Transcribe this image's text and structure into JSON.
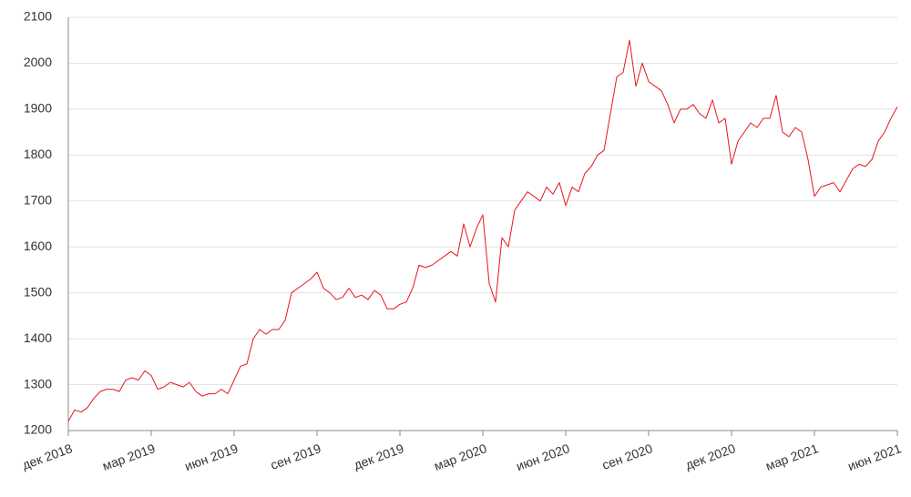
{
  "chart_data": {
    "type": "line",
    "categories": [
      "дек 2018",
      null,
      null,
      null,
      null,
      null,
      null,
      null,
      null,
      null,
      null,
      null,
      null,
      "мар 2019",
      null,
      null,
      null,
      null,
      null,
      null,
      null,
      null,
      null,
      null,
      null,
      null,
      "июн 2019",
      null,
      null,
      null,
      null,
      null,
      null,
      null,
      null,
      null,
      null,
      null,
      null,
      "сен 2019",
      null,
      null,
      null,
      null,
      null,
      null,
      null,
      null,
      null,
      null,
      null,
      null,
      "дек 2019",
      null,
      null,
      null,
      null,
      null,
      null,
      null,
      null,
      null,
      null,
      null,
      null,
      "мар 2020",
      null,
      null,
      null,
      null,
      null,
      null,
      null,
      null,
      null,
      null,
      null,
      null,
      "июн 2020",
      null,
      null,
      null,
      null,
      null,
      null,
      null,
      null,
      null,
      null,
      null,
      null,
      "сен 2020",
      null,
      null,
      null,
      null,
      null,
      null,
      null,
      null,
      null,
      null,
      null,
      null,
      "дек 2020",
      null,
      null,
      null,
      null,
      null,
      null,
      null,
      null,
      null,
      null,
      null,
      null,
      "мар 2021",
      null,
      null,
      null,
      null,
      null,
      null,
      null,
      null,
      null,
      null,
      null,
      null,
      "июн 2021"
    ],
    "values": [
      1220,
      1245,
      1240,
      1250,
      1270,
      1285,
      1290,
      1290,
      1285,
      1310,
      1315,
      1310,
      1330,
      1320,
      1290,
      1295,
      1305,
      1300,
      1295,
      1305,
      1285,
      1275,
      1280,
      1280,
      1290,
      1280,
      1310,
      1340,
      1345,
      1400,
      1420,
      1410,
      1420,
      1420,
      1440,
      1500,
      1510,
      1520,
      1530,
      1545,
      1510,
      1500,
      1485,
      1490,
      1510,
      1490,
      1495,
      1485,
      1505,
      1495,
      1465,
      1465,
      1475,
      1480,
      1510,
      1560,
      1555,
      1560,
      1570,
      1580,
      1590,
      1580,
      1650,
      1600,
      1640,
      1670,
      1520,
      1480,
      1620,
      1600,
      1680,
      1700,
      1720,
      1710,
      1700,
      1730,
      1715,
      1740,
      1690,
      1730,
      1720,
      1760,
      1775,
      1800,
      1810,
      1890,
      1970,
      1980,
      2050,
      1950,
      2000,
      1960,
      1950,
      1940,
      1910,
      1870,
      1900,
      1900,
      1910,
      1890,
      1880,
      1920,
      1870,
      1880,
      1780,
      1830,
      1850,
      1870,
      1860,
      1880,
      1880,
      1930,
      1850,
      1840,
      1860,
      1850,
      1790,
      1710,
      1730,
      1735,
      1740,
      1720,
      1745,
      1770,
      1780,
      1775,
      1790,
      1830,
      1850,
      1880,
      1905
    ],
    "color": "#e8141c",
    "ylim": [
      1200,
      2100
    ],
    "yticks": [
      1200,
      1300,
      1400,
      1500,
      1600,
      1700,
      1800,
      1900,
      2000,
      2100
    ],
    "grid": true
  }
}
